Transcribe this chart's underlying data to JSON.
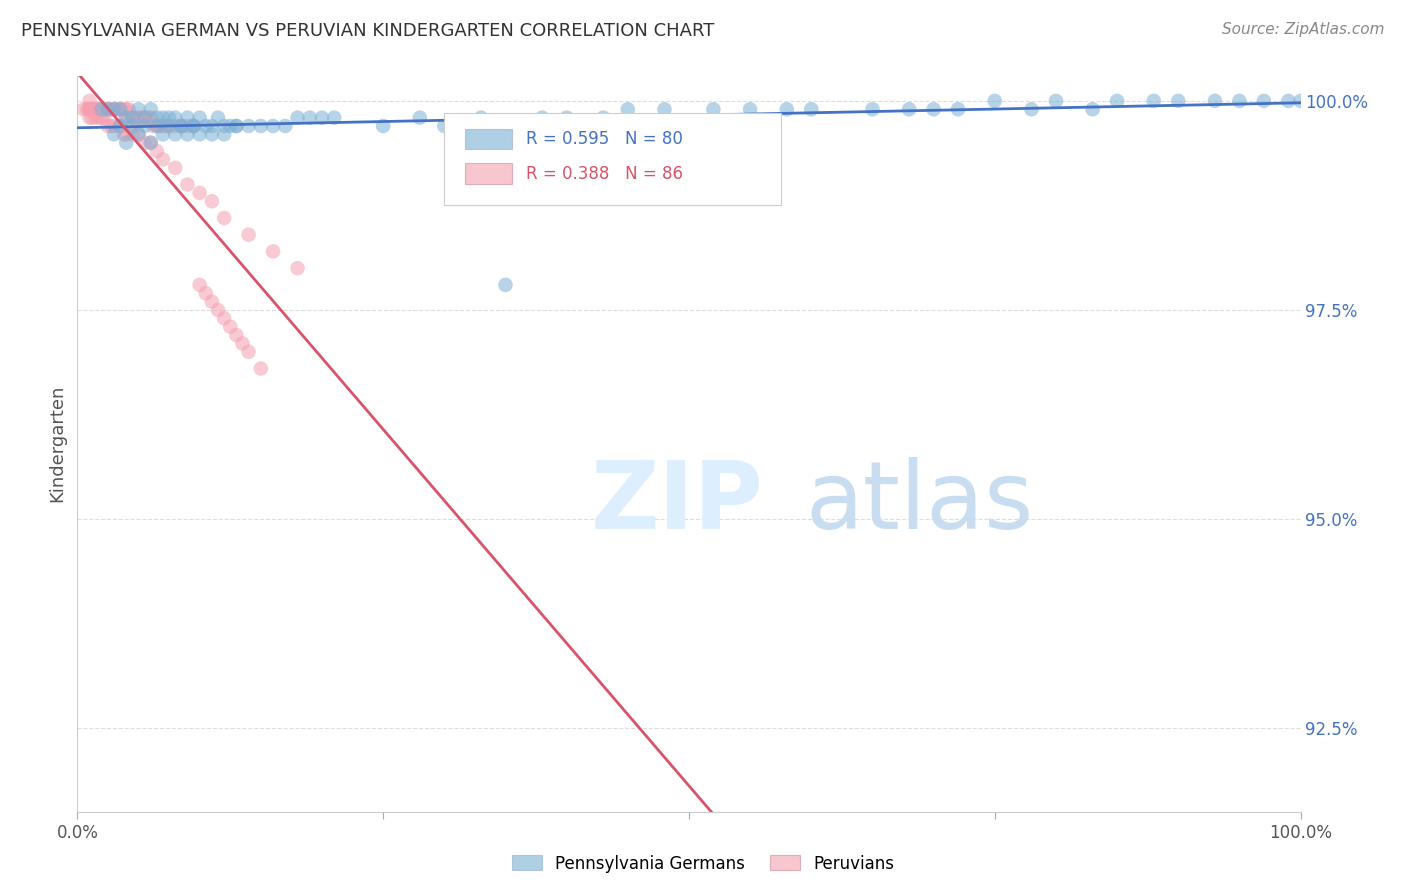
{
  "title": "PENNSYLVANIA GERMAN VS PERUVIAN KINDERGARTEN CORRELATION CHART",
  "source": "Source: ZipAtlas.com",
  "ylabel": "Kindergarten",
  "xlim": [
    0.0,
    1.0
  ],
  "ylim": [
    0.915,
    1.003
  ],
  "yticks": [
    0.925,
    0.95,
    0.975,
    1.0
  ],
  "ytick_labels": [
    "92.5%",
    "95.0%",
    "97.5%",
    "100.0%"
  ],
  "legend_blue_label": "Pennsylvania Germans",
  "legend_pink_label": "Peruvians",
  "blue_R": 0.595,
  "blue_N": 80,
  "pink_R": 0.388,
  "pink_N": 86,
  "blue_color": "#7bafd4",
  "pink_color": "#f4a0b0",
  "blue_line_color": "#4472c4",
  "pink_line_color": "#d9536a",
  "watermark_zip": "ZIP",
  "watermark_atlas": "atlas",
  "watermark_color": "#ddeeff",
  "watermark_atlas_color": "#c8ddf0",
  "background_color": "#ffffff",
  "grid_color": "#dddddd",
  "title_color": "#333333",
  "right_tick_color": "#4472c4",
  "blue_scatter_x": [
    0.02,
    0.025,
    0.03,
    0.035,
    0.04,
    0.045,
    0.05,
    0.055,
    0.06,
    0.065,
    0.07,
    0.075,
    0.08,
    0.085,
    0.09,
    0.095,
    0.1,
    0.11,
    0.12,
    0.13,
    0.035,
    0.045,
    0.055,
    0.065,
    0.075,
    0.085,
    0.095,
    0.105,
    0.115,
    0.125,
    0.03,
    0.05,
    0.07,
    0.09,
    0.11,
    0.13,
    0.15,
    0.17,
    0.19,
    0.21,
    0.04,
    0.06,
    0.08,
    0.1,
    0.12,
    0.14,
    0.16,
    0.18,
    0.2,
    0.25,
    0.3,
    0.35,
    0.4,
    0.45,
    0.55,
    0.65,
    0.7,
    0.75,
    0.8,
    0.85,
    0.9,
    0.95,
    0.97,
    0.99,
    1.0,
    0.6,
    0.68,
    0.72,
    0.78,
    0.83,
    0.88,
    0.93,
    0.28,
    0.33,
    0.38,
    0.43,
    0.48,
    0.52,
    0.58
  ],
  "blue_scatter_y": [
    0.999,
    0.999,
    0.999,
    0.999,
    0.998,
    0.998,
    0.999,
    0.998,
    0.999,
    0.998,
    0.998,
    0.998,
    0.998,
    0.997,
    0.998,
    0.997,
    0.998,
    0.997,
    0.997,
    0.997,
    0.997,
    0.997,
    0.997,
    0.997,
    0.997,
    0.997,
    0.997,
    0.997,
    0.998,
    0.997,
    0.996,
    0.996,
    0.996,
    0.996,
    0.996,
    0.997,
    0.997,
    0.997,
    0.998,
    0.998,
    0.995,
    0.995,
    0.996,
    0.996,
    0.996,
    0.997,
    0.997,
    0.998,
    0.998,
    0.997,
    0.997,
    0.978,
    0.998,
    0.999,
    0.999,
    0.999,
    0.999,
    1.0,
    1.0,
    1.0,
    1.0,
    1.0,
    1.0,
    1.0,
    1.0,
    0.999,
    0.999,
    0.999,
    0.999,
    0.999,
    1.0,
    1.0,
    0.998,
    0.998,
    0.998,
    0.998,
    0.999,
    0.999,
    0.999
  ],
  "pink_scatter_x": [
    0.005,
    0.008,
    0.01,
    0.01,
    0.01,
    0.01,
    0.01,
    0.012,
    0.014,
    0.015,
    0.015,
    0.015,
    0.018,
    0.018,
    0.02,
    0.02,
    0.02,
    0.02,
    0.022,
    0.025,
    0.025,
    0.028,
    0.03,
    0.03,
    0.032,
    0.035,
    0.035,
    0.038,
    0.04,
    0.04,
    0.042,
    0.045,
    0.045,
    0.048,
    0.05,
    0.052,
    0.055,
    0.058,
    0.06,
    0.062,
    0.065,
    0.068,
    0.07,
    0.072,
    0.075,
    0.08,
    0.085,
    0.09,
    0.095,
    0.1,
    0.105,
    0.11,
    0.115,
    0.12,
    0.125,
    0.13,
    0.135,
    0.14,
    0.15,
    0.01,
    0.012,
    0.015,
    0.018,
    0.02,
    0.022,
    0.025,
    0.028,
    0.03,
    0.035,
    0.038,
    0.04,
    0.045,
    0.05,
    0.055,
    0.06,
    0.065,
    0.07,
    0.08,
    0.09,
    0.1,
    0.11,
    0.12,
    0.14,
    0.16,
    0.18
  ],
  "pink_scatter_y": [
    0.999,
    0.999,
    1.0,
    0.999,
    0.999,
    0.999,
    0.999,
    0.999,
    0.999,
    0.999,
    0.999,
    0.999,
    0.999,
    0.999,
    0.999,
    0.999,
    0.999,
    0.999,
    0.999,
    0.999,
    0.999,
    0.999,
    0.999,
    0.999,
    0.999,
    0.999,
    0.999,
    0.999,
    0.999,
    0.998,
    0.999,
    0.998,
    0.998,
    0.998,
    0.998,
    0.998,
    0.998,
    0.998,
    0.998,
    0.997,
    0.997,
    0.997,
    0.997,
    0.997,
    0.997,
    0.997,
    0.997,
    0.997,
    0.997,
    0.978,
    0.977,
    0.976,
    0.975,
    0.974,
    0.973,
    0.972,
    0.971,
    0.97,
    0.968,
    0.998,
    0.998,
    0.998,
    0.998,
    0.998,
    0.998,
    0.997,
    0.997,
    0.997,
    0.997,
    0.996,
    0.996,
    0.996,
    0.996,
    0.995,
    0.995,
    0.994,
    0.993,
    0.992,
    0.99,
    0.989,
    0.988,
    0.986,
    0.984,
    0.982,
    0.98
  ]
}
